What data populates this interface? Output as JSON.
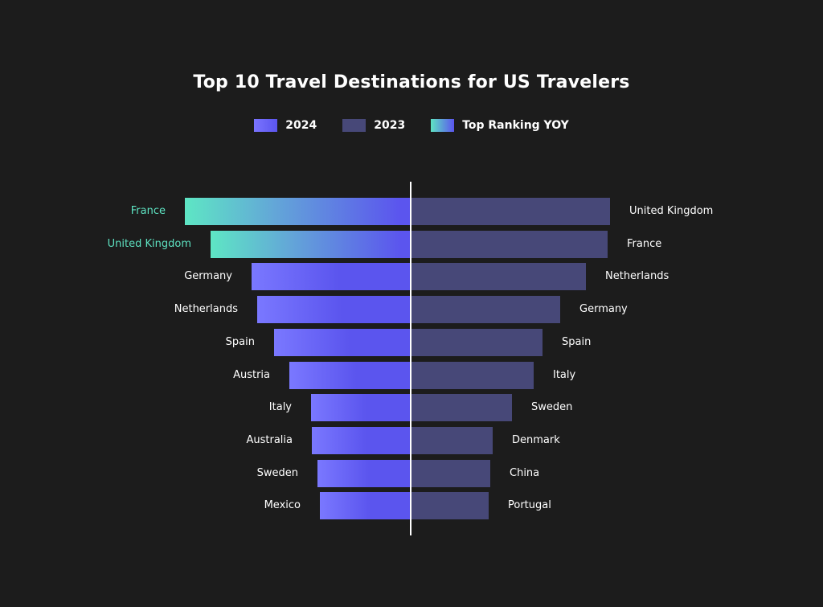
{
  "chart_data": {
    "type": "bar",
    "title": "Top 10 Travel Destinations for US Travelers",
    "subtype": "diverging-horizontal-ranked",
    "legend": [
      {
        "label": "2024",
        "color": "#6a66f7"
      },
      {
        "label": "2023",
        "color": "#474878"
      },
      {
        "label": "Top Ranking YOY",
        "color_from": "#5ee3c2",
        "color_to": "#5b55ee"
      }
    ],
    "xlabel": "",
    "ylabel": "",
    "grid": false,
    "series": [
      {
        "name": "2024",
        "side": "left",
        "categories": [
          "France",
          "United Kingdom",
          "Germany",
          "Netherlands",
          "Spain",
          "Austria",
          "Italy",
          "Australia",
          "Sweden",
          "Mexico"
        ],
        "values": [
          281,
          249,
          198,
          191,
          170,
          151,
          124,
          123,
          116,
          113
        ],
        "highlight_top": [
          "France",
          "United Kingdom"
        ]
      },
      {
        "name": "2023",
        "side": "right",
        "categories": [
          "United Kingdom",
          "France",
          "Netherlands",
          "Germany",
          "Spain",
          "Italy",
          "Sweden",
          "Denmark",
          "China",
          "Portugal"
        ],
        "values": [
          248,
          245,
          218,
          186,
          164,
          153,
          126,
          102,
          99,
          97
        ]
      }
    ],
    "value_unit": "relative bar length (px, no axis scale shown)"
  },
  "rows": [
    {
      "l": "France",
      "lw": 281,
      "lt": true,
      "r": "United Kingdom",
      "rw": 248
    },
    {
      "l": "United Kingdom",
      "lw": 249,
      "lt": true,
      "r": "France",
      "rw": 245
    },
    {
      "l": "Germany",
      "lw": 198,
      "lt": false,
      "r": "Netherlands",
      "rw": 218
    },
    {
      "l": "Netherlands",
      "lw": 191,
      "lt": false,
      "r": "Germany",
      "rw": 186
    },
    {
      "l": "Spain",
      "lw": 170,
      "lt": false,
      "r": "Spain",
      "rw": 164
    },
    {
      "l": "Austria",
      "lw": 151,
      "lt": false,
      "r": "Italy",
      "rw": 153
    },
    {
      "l": "Italy",
      "lw": 124,
      "lt": false,
      "r": "Sweden",
      "rw": 126
    },
    {
      "l": "Australia",
      "lw": 123,
      "lt": false,
      "r": "Denmark",
      "rw": 102
    },
    {
      "l": "Sweden",
      "lw": 116,
      "lt": false,
      "r": "China",
      "rw": 99
    },
    {
      "l": "Mexico",
      "lw": 113,
      "lt": false,
      "r": "Portugal",
      "rw": 97
    }
  ],
  "legend": {
    "y2024": "2024",
    "y2023": "2023",
    "top": "Top Ranking YOY"
  },
  "title": "Top 10 Travel Destinations for US Travelers"
}
